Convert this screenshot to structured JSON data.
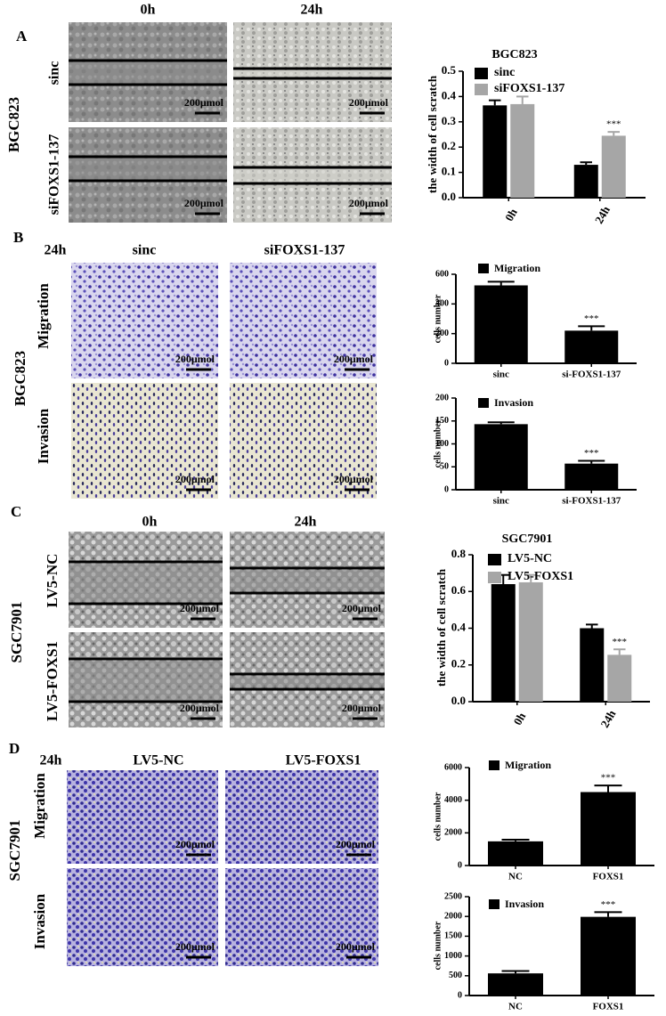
{
  "panels": {
    "A": {
      "label": "A",
      "headers": [
        "0h",
        "24h"
      ],
      "cell_line": "BGC823",
      "rows": [
        "sinc",
        "siFOXS1-137"
      ]
    },
    "B": {
      "label": "B",
      "time": "24h",
      "headers": [
        "sinc",
        "siFOXS1-137"
      ],
      "cell_line": "BGC823",
      "rows": [
        "Migration",
        "Invasion"
      ]
    },
    "C": {
      "label": "C",
      "headers": [
        "0h",
        "24h"
      ],
      "cell_line": "SGC7901",
      "rows": [
        "LV5-NC",
        "LV5-FOXS1"
      ]
    },
    "D": {
      "label": "D",
      "time": "24h",
      "headers": [
        "LV5-NC",
        "LV5-FOXS1"
      ],
      "cell_line": "SGC7901",
      "rows": [
        "Migration",
        "Invasion"
      ]
    }
  },
  "scale_bar": "200μmol",
  "chart_data": [
    {
      "type": "bar",
      "title": "BGC823",
      "ylabel": "the width of cell scratch",
      "categories": [
        "0h",
        "24h"
      ],
      "series": [
        {
          "name": "sinc",
          "color": "#000000",
          "values": [
            0.365,
            0.13
          ],
          "errors": [
            0.02,
            0.01
          ]
        },
        {
          "name": "siFOXS1-137",
          "color": "#a6a6a6",
          "values": [
            0.37,
            0.245
          ],
          "errors": [
            0.03,
            0.015
          ]
        }
      ],
      "ylim": [
        0,
        0.5
      ],
      "yticks": [
        {
          "value": 0,
          "label": "0.0"
        },
        0.1,
        0.2,
        0.3,
        0.4,
        0.5
      ],
      "annotation": "***"
    },
    {
      "type": "bar",
      "ylabel": "cells number",
      "categories": [
        "sinc",
        "si-FOXS1-137"
      ],
      "series": [
        {
          "name": "Migration",
          "color": "#000000",
          "values": [
            525,
            220
          ],
          "errors": [
            25,
            30
          ]
        }
      ],
      "ylim": [
        0,
        600
      ],
      "yticks": [
        0,
        200,
        400,
        600
      ],
      "annotation": "***"
    },
    {
      "type": "bar",
      "ylabel": "cells number",
      "categories": [
        "sinc",
        "si-FOXS1-137"
      ],
      "series": [
        {
          "name": "Invasion",
          "color": "#000000",
          "values": [
            143,
            57
          ],
          "errors": [
            4,
            6
          ]
        }
      ],
      "ylim": [
        0,
        200
      ],
      "yticks": [
        0,
        50,
        100,
        150,
        200
      ],
      "annotation": "***"
    },
    {
      "type": "bar",
      "title": "SGC7901",
      "ylabel": "the width of cell scratch",
      "categories": [
        "0h",
        "24h"
      ],
      "series": [
        {
          "name": "LV5-NC",
          "color": "#000000",
          "values": [
            0.64,
            0.4
          ],
          "errors": [
            0.05,
            0.02
          ]
        },
        {
          "name": "LV5-FOXS1",
          "color": "#a6a6a6",
          "values": [
            0.65,
            0.255
          ],
          "errors": [
            0.04,
            0.03
          ]
        }
      ],
      "ylim": [
        0,
        0.8
      ],
      "yticks": [
        {
          "value": 0,
          "label": "0.0"
        },
        0.2,
        0.4,
        0.6,
        0.8
      ],
      "annotation": "***"
    },
    {
      "type": "bar",
      "ylabel": "cells number",
      "categories": [
        "NC",
        "FOXS1"
      ],
      "series": [
        {
          "name": "Migration",
          "color": "#000000",
          "values": [
            1480,
            4500
          ],
          "errors": [
            100,
            400
          ]
        }
      ],
      "ylim": [
        0,
        6000
      ],
      "yticks": [
        0,
        2000,
        4000,
        6000
      ],
      "annotation": "***"
    },
    {
      "type": "bar",
      "ylabel": "cells number",
      "categories": [
        "NC",
        "FOXS1"
      ],
      "series": [
        {
          "name": "Invasion",
          "color": "#000000",
          "values": [
            560,
            1990
          ],
          "errors": [
            60,
            120
          ]
        }
      ],
      "ylim": [
        0,
        2500
      ],
      "yticks": [
        0,
        500,
        1000,
        1500,
        2000,
        2500
      ],
      "annotation": "***"
    }
  ]
}
